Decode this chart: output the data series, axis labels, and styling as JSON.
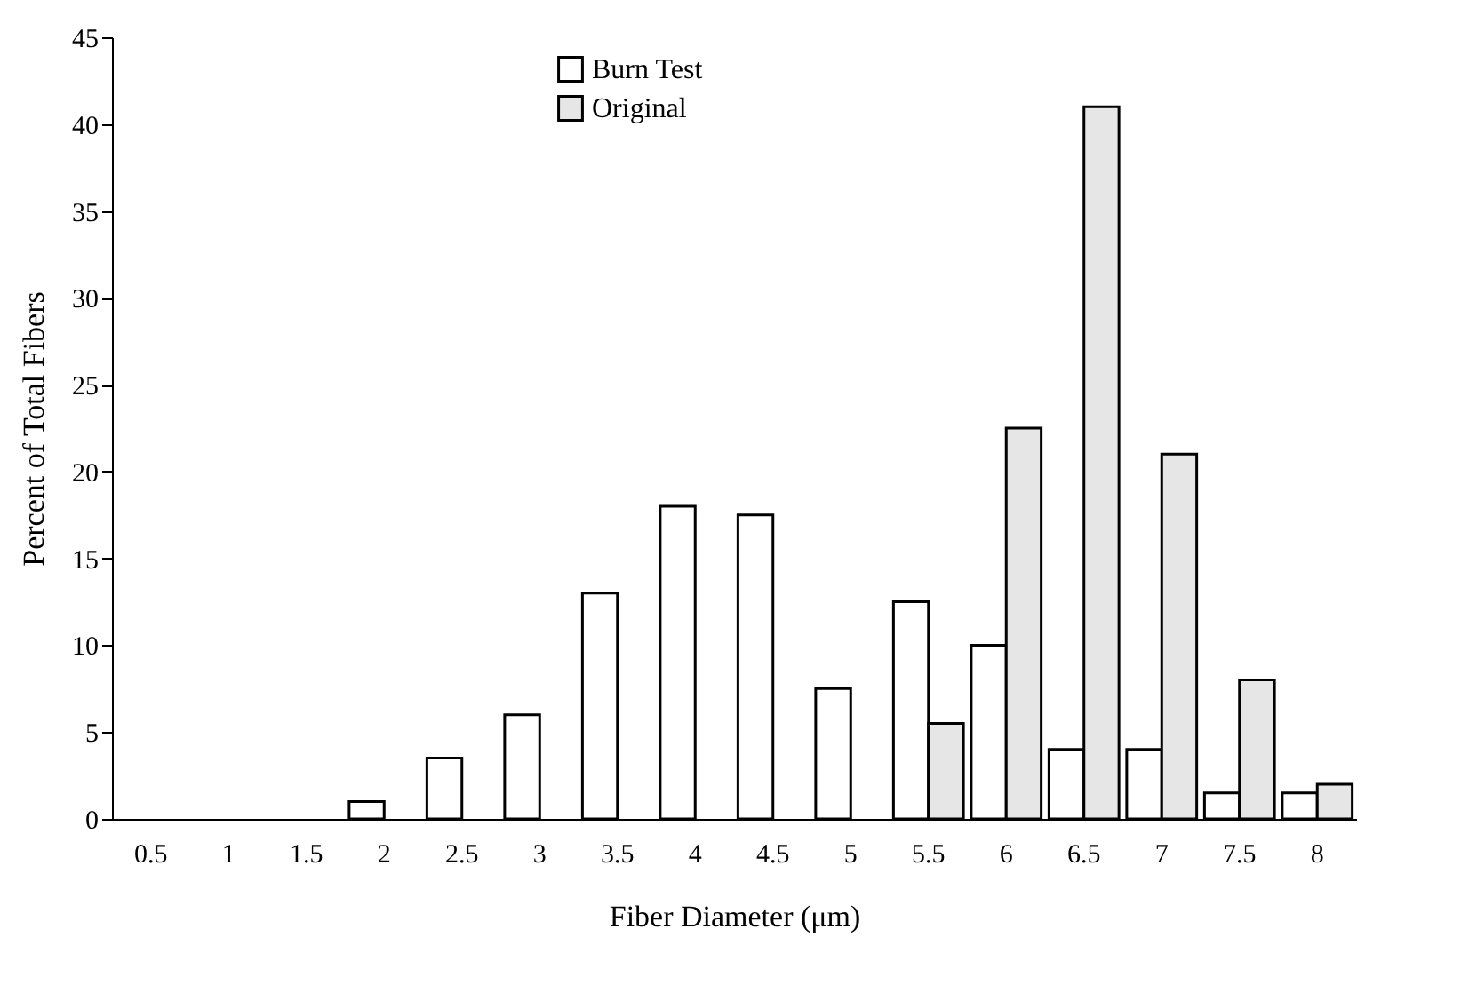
{
  "chart_data": {
    "type": "bar",
    "xlabel": "Fiber Diameter (μm)",
    "ylabel": "Percent of Total Fibers",
    "categories": [
      "0.5",
      "1",
      "1.5",
      "2",
      "2.5",
      "3",
      "3.5",
      "4",
      "4.5",
      "5",
      "5.5",
      "6",
      "6.5",
      "7",
      "7.5",
      "8"
    ],
    "series": [
      {
        "name": "Burn Test",
        "color": "#ffffff",
        "values": [
          null,
          null,
          null,
          1,
          3.5,
          6,
          13,
          18,
          17.5,
          7.5,
          12.5,
          10,
          4,
          4,
          1.5,
          1.5
        ]
      },
      {
        "name": "Original",
        "color": "#e6e6e6",
        "values": [
          null,
          null,
          null,
          null,
          null,
          null,
          null,
          null,
          null,
          null,
          5.5,
          22.5,
          41,
          21,
          8,
          2
        ]
      }
    ],
    "ylim": [
      0,
      45
    ],
    "yticks": [
      0,
      5,
      10,
      15,
      20,
      25,
      30,
      35,
      40,
      45
    ],
    "grid": false,
    "legend": "top"
  }
}
